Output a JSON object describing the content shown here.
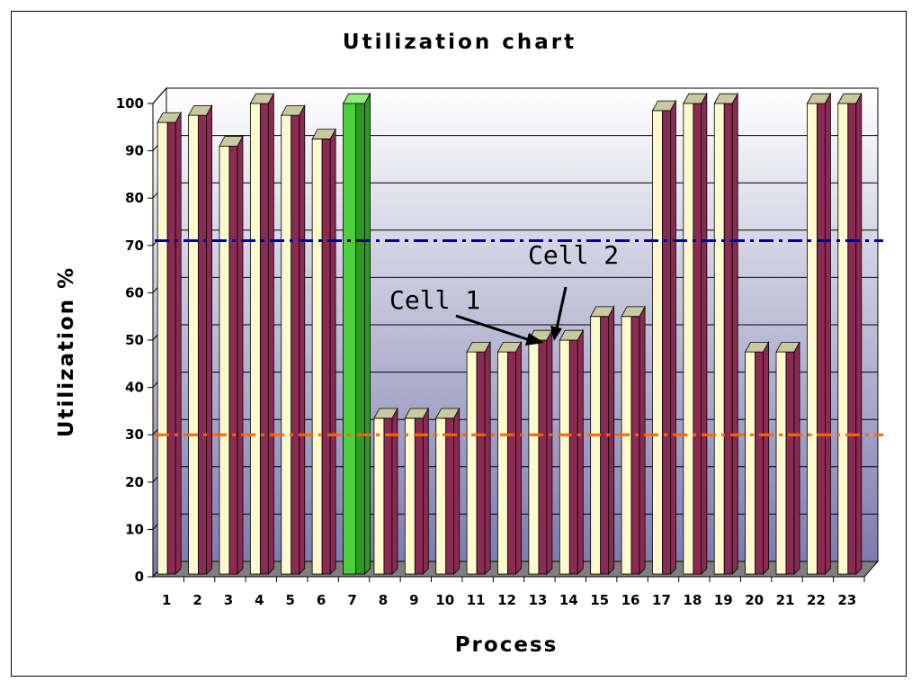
{
  "chart_data": {
    "type": "bar",
    "title": "Utilization chart",
    "xlabel": "Process",
    "ylabel": "Utilization %",
    "ylim": [
      0,
      100
    ],
    "yticks": [
      "0",
      "10",
      "20",
      "30",
      "40",
      "50",
      "60",
      "70",
      "80",
      "90",
      "100"
    ],
    "categories": [
      "1",
      "2",
      "3",
      "4",
      "5",
      "6",
      "7",
      "8",
      "9",
      "10",
      "11",
      "12",
      "13",
      "14",
      "15",
      "16",
      "17",
      "18",
      "19",
      "20",
      "21",
      "22",
      "23"
    ],
    "values": [
      96,
      97.5,
      91,
      100,
      97.5,
      92.5,
      100,
      33.5,
      33.5,
      33.5,
      47.5,
      47.5,
      50,
      50,
      55,
      55,
      98.5,
      100,
      100,
      47.5,
      47.5,
      100,
      100
    ],
    "highlighted_category": "7",
    "reference_lines": [
      {
        "value": 71,
        "color": "#00008b"
      },
      {
        "value": 30,
        "color": "#ff6600"
      }
    ],
    "annotations": [
      {
        "text": "Cell 1",
        "points_to_category": "13"
      },
      {
        "text": "Cell 2",
        "points_to_category": "13"
      }
    ],
    "grid": true,
    "style": "3d",
    "colors": {
      "bar_front": "#fffacd",
      "bar_side": "#8b2a52",
      "bar_top": "#c9c9a0",
      "highlight_front": "#4ccf3c",
      "highlight_side": "#2c9a1e",
      "highlight_top": "#8ef07a",
      "wall_top": "#ffffff",
      "wall_bottom": "#7c7cae",
      "floor": "#7f7f7f"
    }
  }
}
